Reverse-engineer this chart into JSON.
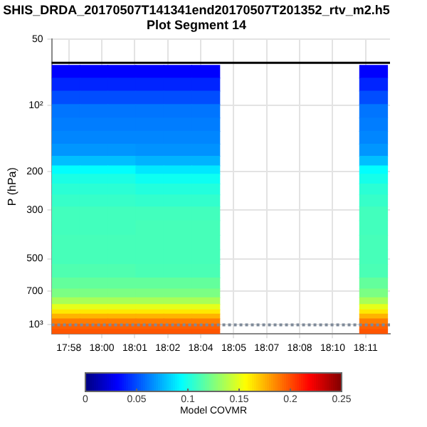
{
  "chart_data": {
    "type": "heatmap",
    "title": "SHIS_DRDA_20170507T141341end20170507T201352_rtv_m2.h5",
    "subtitle": "Plot Segment 14",
    "ylabel": "P (hPa)",
    "clabel": "Model COVMR",
    "x": [
      17.96592,
      17.98642,
      18.00692,
      18.02742,
      18.04792,
      18.06842,
      18.08892,
      18.10942,
      18.12992,
      18.15042,
      18.17092,
      18.19142
    ],
    "y": [
      70,
      80,
      92,
      106,
      122,
      140,
      160,
      180,
      196,
      215,
      240,
      270,
      310,
      360,
      420,
      490,
      570,
      650,
      720,
      780,
      830,
      870,
      910,
      960,
      1020,
      1070
    ],
    "cells": [
      [
        0.031,
        0.031,
        0.031,
        0.031,
        0.031,
        0.031,
        null,
        null,
        null,
        null,
        null,
        0.031
      ],
      [
        0.04,
        0.04,
        0.04,
        0.04,
        0.04,
        0.04,
        null,
        null,
        null,
        null,
        null,
        0.04
      ],
      [
        0.05,
        0.05,
        0.05,
        0.05,
        0.05,
        0.05,
        null,
        null,
        null,
        null,
        null,
        0.05
      ],
      [
        0.06,
        0.06,
        0.06,
        0.06,
        0.06,
        0.06,
        null,
        null,
        null,
        null,
        null,
        0.06
      ],
      [
        0.062,
        0.062,
        0.062,
        0.062,
        0.062,
        0.062,
        null,
        null,
        null,
        null,
        null,
        0.062
      ],
      [
        0.064,
        0.064,
        0.064,
        0.064,
        0.064,
        0.064,
        null,
        null,
        null,
        null,
        null,
        0.064
      ],
      [
        0.068,
        0.068,
        0.068,
        0.067,
        0.067,
        0.067,
        null,
        null,
        null,
        null,
        null,
        0.068
      ],
      [
        0.078,
        0.078,
        0.078,
        0.075,
        0.075,
        0.075,
        null,
        null,
        null,
        null,
        null,
        0.078
      ],
      [
        0.094,
        0.094,
        0.094,
        0.088,
        0.088,
        0.088,
        null,
        null,
        null,
        null,
        null,
        0.094
      ],
      [
        0.1,
        0.1,
        0.1,
        0.097,
        0.097,
        0.097,
        null,
        null,
        null,
        null,
        null,
        0.099
      ],
      [
        0.104,
        0.104,
        0.104,
        0.102,
        0.102,
        0.102,
        null,
        null,
        null,
        null,
        null,
        0.104
      ],
      [
        0.107,
        0.107,
        0.107,
        0.106,
        0.106,
        0.106,
        null,
        null,
        null,
        null,
        null,
        0.107
      ],
      [
        0.11,
        0.11,
        0.11,
        0.11,
        0.11,
        0.11,
        null,
        null,
        null,
        null,
        null,
        0.11
      ],
      [
        0.11,
        0.11,
        0.11,
        0.111,
        0.111,
        0.111,
        null,
        null,
        null,
        null,
        null,
        0.11
      ],
      [
        0.111,
        0.111,
        0.111,
        0.111,
        0.111,
        0.111,
        null,
        null,
        null,
        null,
        null,
        0.111
      ],
      [
        0.111,
        0.111,
        0.111,
        0.111,
        0.111,
        0.111,
        null,
        null,
        null,
        null,
        null,
        0.111
      ],
      [
        0.113,
        0.113,
        0.113,
        0.112,
        0.112,
        0.112,
        null,
        null,
        null,
        null,
        null,
        0.112
      ],
      [
        0.118,
        0.118,
        0.118,
        0.118,
        0.118,
        0.118,
        null,
        null,
        null,
        null,
        null,
        0.118
      ],
      [
        0.124,
        0.124,
        0.124,
        0.124,
        0.124,
        0.124,
        null,
        null,
        null,
        null,
        null,
        0.124
      ],
      [
        0.135,
        0.135,
        0.135,
        0.135,
        0.135,
        0.135,
        null,
        null,
        null,
        null,
        null,
        0.135
      ],
      [
        0.15,
        0.15,
        0.15,
        0.15,
        0.15,
        0.15,
        null,
        null,
        null,
        null,
        null,
        0.15
      ],
      [
        0.162,
        0.162,
        0.162,
        0.162,
        0.162,
        0.162,
        null,
        null,
        null,
        null,
        null,
        0.162
      ],
      [
        0.175,
        0.175,
        0.175,
        0.175,
        0.175,
        0.175,
        null,
        null,
        null,
        null,
        null,
        0.175
      ],
      [
        0.188,
        0.188,
        0.188,
        0.188,
        0.188,
        0.188,
        null,
        null,
        null,
        null,
        null,
        0.188
      ],
      [
        0.195,
        0.195,
        0.195,
        0.195,
        0.195,
        0.195,
        null,
        null,
        null,
        null,
        null,
        0.195
      ],
      [
        0.198,
        0.198,
        0.198,
        0.198,
        0.198,
        0.198,
        null,
        null,
        null,
        null,
        null,
        0.198
      ]
    ],
    "xlim": [
      17.9557,
      18.2037
    ],
    "xticks": [
      {
        "value": 17.96833,
        "label": "17:58"
      },
      {
        "value": 17.9925,
        "label": "18:00"
      },
      {
        "value": 18.01667,
        "label": "18:01"
      },
      {
        "value": 18.04083,
        "label": "18:02"
      },
      {
        "value": 18.065,
        "label": "18:04"
      },
      {
        "value": 18.08917,
        "label": "18:05"
      },
      {
        "value": 18.11333,
        "label": "18:07"
      },
      {
        "value": 18.1375,
        "label": "18:08"
      },
      {
        "value": 18.16167,
        "label": "18:10"
      },
      {
        "value": 18.18583,
        "label": "18:11"
      }
    ],
    "log": "y",
    "ylim": [
      1100,
      50
    ],
    "yticks": [
      50,
      {
        "value": 100,
        "label": "10²"
      },
      200,
      300,
      500,
      700,
      {
        "value": 1000,
        "label": "10³"
      }
    ],
    "clim": [
      0,
      0.25
    ],
    "cticks": [
      0,
      0.05,
      0.1,
      0.15,
      0.2,
      0.25
    ],
    "grid": true,
    "ref_lines": [
      {
        "axis": "y",
        "value": 64,
        "color": "#000000",
        "line_style": "solid"
      },
      {
        "axis": "y",
        "value": 1000,
        "color": "#7f8a99",
        "line_style": "dotted"
      }
    ]
  }
}
